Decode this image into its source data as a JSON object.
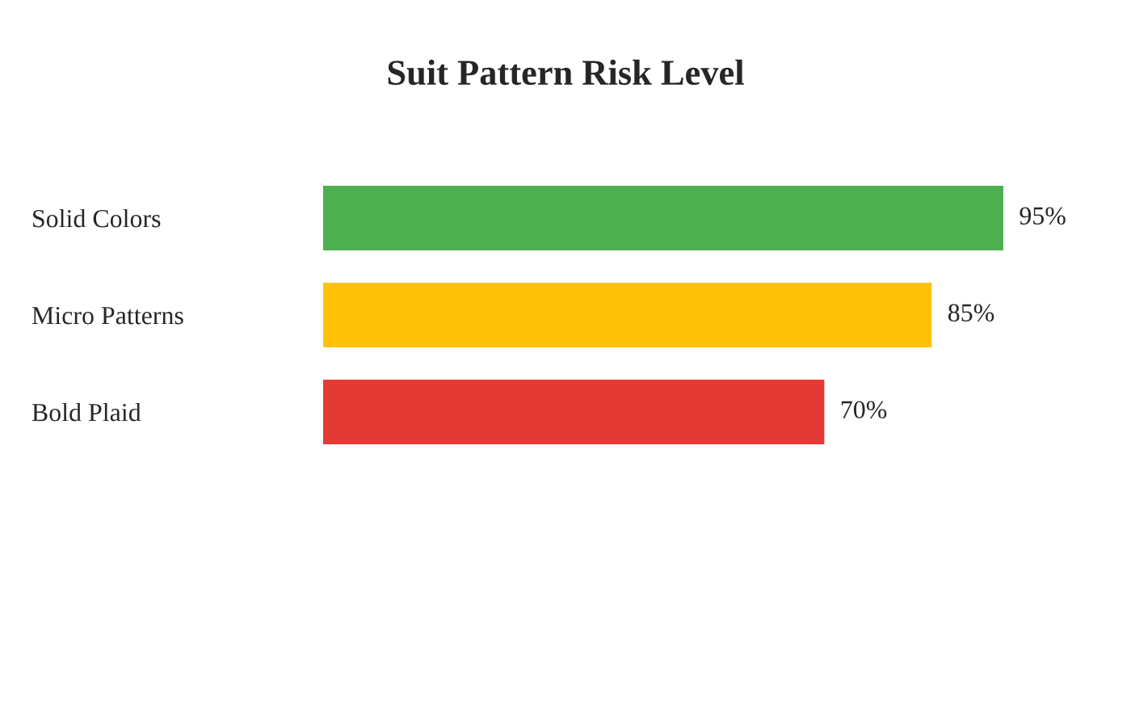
{
  "chart_data": {
    "type": "bar",
    "orientation": "horizontal",
    "title": "Suit Pattern Risk Level",
    "categories": [
      "Solid Colors",
      "Micro Patterns",
      "Bold Plaid"
    ],
    "values": [
      95,
      85,
      70
    ],
    "colors": [
      "#4caf50",
      "#ffc107",
      "#e53935"
    ],
    "value_labels": [
      "95%",
      "85%",
      "70%"
    ],
    "grid": false,
    "legend": false
  }
}
